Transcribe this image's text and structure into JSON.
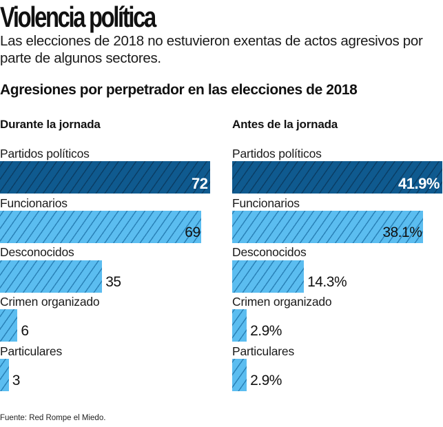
{
  "header": {
    "title": "Violencia política",
    "subtitle": "Las elecciones de 2018 no estuvieron exentas de actos agresivos por parte de algunos sectores."
  },
  "chart_data": [
    {
      "type": "bar",
      "orientation": "horizontal",
      "title": "Durante la jornada",
      "supertitle": "Agresiones por perpetrador en las elecciones de 2018",
      "categories": [
        "Partidos políticos",
        "Funcionarios",
        "Desconocidos",
        "Crimen organizado",
        "Particulares"
      ],
      "values": [
        72,
        69,
        35,
        6,
        3
      ],
      "value_labels": [
        "72",
        "69",
        "35",
        "6",
        "3"
      ],
      "highlight_index": 0,
      "xlim": [
        0,
        72
      ],
      "grid": false,
      "xlabel": "",
      "ylabel": ""
    },
    {
      "type": "bar",
      "orientation": "horizontal",
      "title": "Antes de la jornada",
      "supertitle": "Agresiones por perpetrador en las elecciones de 2018",
      "categories": [
        "Partidos políticos",
        "Funcionarios",
        "Desconocidos",
        "Crimen organizado",
        "Particulares"
      ],
      "values": [
        41.9,
        38.1,
        14.3,
        2.9,
        2.9
      ],
      "value_labels": [
        "41.9%",
        "38.1%",
        "14.3%",
        "2.9%",
        "2.9%"
      ],
      "highlight_index": 0,
      "xlim": [
        0,
        41.9
      ],
      "grid": false,
      "xlabel": "",
      "ylabel": ""
    }
  ],
  "chart_title": "Agresiones por perpetrador en las elecciones de 2018",
  "colors": {
    "highlight_bar": "#0f5a8f",
    "highlight_hatch": "#0a3e66",
    "bar": "#5bbdf0",
    "bar_hatch": "#2a82b8"
  },
  "footer": {
    "source": "Fuente: Red Rompe el Miedo."
  }
}
